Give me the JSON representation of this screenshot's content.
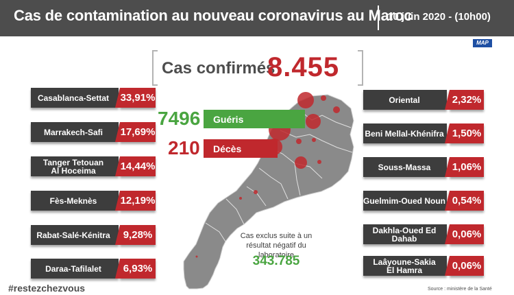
{
  "header": {
    "title": "Cas de contamination au nouveau coronavirus au Maroc",
    "date": "10 juin 2020 - (10h00)"
  },
  "logo": "MAP",
  "confirmed": {
    "label": "Cas confirmés",
    "value": "8.455"
  },
  "recovered": {
    "value": "7496",
    "label": "Guéris"
  },
  "deaths": {
    "value": "210",
    "label": "Décès"
  },
  "regions_left": [
    {
      "name": [
        "Casablanca-Settat"
      ],
      "pct": "33,91%"
    },
    {
      "name": [
        "Marrakech-Safi"
      ],
      "pct": "17,69%"
    },
    {
      "name": [
        "Tanger Tetouan",
        "Al Hoceima"
      ],
      "pct": "14,44%"
    },
    {
      "name": [
        "Fès-Meknès"
      ],
      "pct": "12,19%"
    },
    {
      "name": [
        "Rabat-Salé-Kénitra"
      ],
      "pct": "9,28%"
    },
    {
      "name": [
        "Daraa-Tafilalet"
      ],
      "pct": "6,93%"
    }
  ],
  "regions_right": [
    {
      "name": [
        "Oriental"
      ],
      "pct": "2,32%"
    },
    {
      "name": [
        "Beni Mellal-Khénifra"
      ],
      "pct": "1,50%"
    },
    {
      "name": [
        "Souss-Massa"
      ],
      "pct": "1,06%"
    },
    {
      "name": [
        "Guelmim-Oued Noun"
      ],
      "pct": "0,54%"
    },
    {
      "name": [
        "Dakhla-Oued Ed Dahab"
      ],
      "pct": "0,06%"
    },
    {
      "name": [
        "Laâyoune-Sakia",
        "El Hamra"
      ],
      "pct": "0,06%"
    }
  ],
  "excluded": {
    "label": "Cas exclus suite à un résultat négatif du laboratoire",
    "value": "343.785"
  },
  "hashtag": "#restezchezvous",
  "source": "Source : ministère de la Santé",
  "colors": {
    "header": "#4d4d4d",
    "bar": "#3d3d3d",
    "accent": "#c0282d",
    "green": "#4aa541",
    "map": "#8a8a8a"
  }
}
